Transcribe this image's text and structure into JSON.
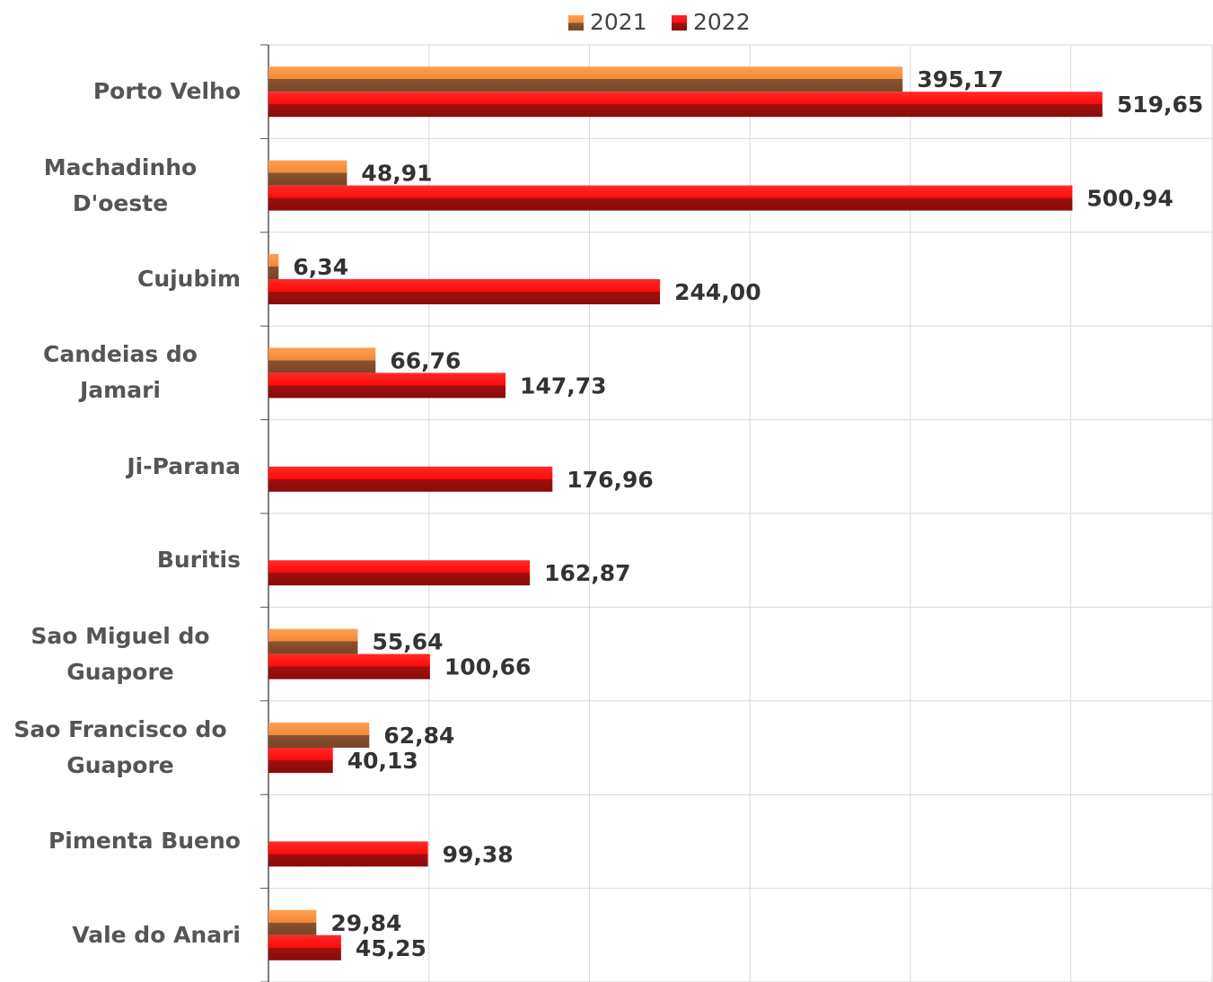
{
  "chart_data": {
    "type": "bar",
    "orientation": "horizontal",
    "categories": [
      "Porto Velho",
      "Machadinho D'oeste",
      "Cujubim",
      "Candeias do Jamari",
      "Ji-Parana",
      "Buritis",
      "Sao Miguel do Guapore",
      "Sao Francisco do Guapore",
      "Pimenta Bueno",
      "Vale do Anari"
    ],
    "series": [
      {
        "name": "2021",
        "color": "#f0893a",
        "values": [
          395.17,
          48.91,
          6.34,
          66.76,
          null,
          null,
          55.64,
          62.84,
          null,
          29.84
        ],
        "value_labels": [
          "395,17",
          "48,91",
          "6,34",
          "66,76",
          null,
          null,
          "55,64",
          "62,84",
          null,
          "29,84"
        ]
      },
      {
        "name": "2022",
        "color": "#ff0a0a",
        "values": [
          519.65,
          500.94,
          244.0,
          147.73,
          176.96,
          162.87,
          100.66,
          40.13,
          99.38,
          45.25
        ],
        "value_labels": [
          "519,65",
          "500,94",
          "244,00",
          "147,73",
          "176,96",
          "162,87",
          "100,66",
          "40,13",
          "99,38",
          "45,25"
        ]
      }
    ],
    "xlim": [
      0,
      588
    ],
    "xticks": [
      0,
      100,
      200,
      300,
      400,
      500
    ],
    "grid": true,
    "legend": "top"
  }
}
